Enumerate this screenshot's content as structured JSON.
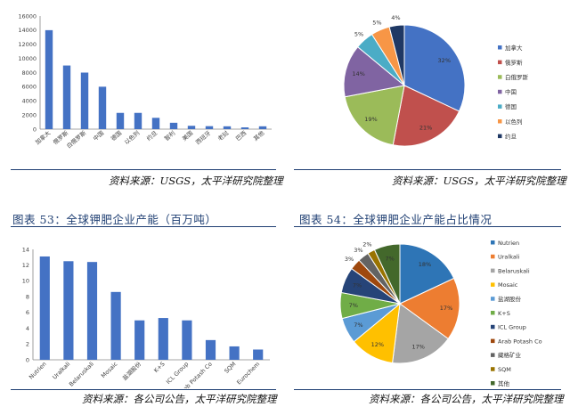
{
  "panels": {
    "top_left": {
      "source": "资料来源：USGS，太平洋研究院整理"
    },
    "top_right": {
      "source": "资料来源：USGS，太平洋研究院整理"
    },
    "bottom_left": {
      "figure_title": "图表 53：全球钾肥企业产能（百万吨）",
      "source": "资料来源：各公司公告，太平洋研究院整理"
    },
    "bottom_right": {
      "figure_title": "图表 54：全球钾肥企业产能占比情况",
      "source": "资料来源：各公司公告，太平洋研究院整理"
    }
  },
  "colors": {
    "bar": "#4472c4",
    "rule": "#1f3f73",
    "pie_top": [
      "#4472c4",
      "#c0504d",
      "#9bbb59",
      "#8064a2",
      "#4bacc6",
      "#f79646",
      "#1f3864"
    ],
    "pie_bottom": [
      "#2e75b6",
      "#ed7d31",
      "#a5a5a5",
      "#ffc000",
      "#5b9bd5",
      "#70ad47",
      "#264478",
      "#9e480e",
      "#636363",
      "#997300",
      "#43682b"
    ]
  },
  "chart_data": [
    {
      "type": "bar",
      "categories": [
        "加拿大",
        "俄罗斯",
        "白俄罗斯",
        "中国",
        "德国",
        "以色列",
        "约旦",
        "智利",
        "美国",
        "西班牙",
        "老挝",
        "巴西",
        "其他"
      ],
      "values": [
        14000,
        9000,
        8000,
        6000,
        2300,
        2300,
        1600,
        900,
        470,
        420,
        400,
        250,
        400
      ],
      "ylim": [
        0,
        16000
      ],
      "yticks": [
        0,
        2000,
        4000,
        6000,
        8000,
        10000,
        12000,
        14000,
        16000
      ],
      "grid": false
    },
    {
      "type": "pie",
      "categories": [
        "加拿大",
        "俄罗斯",
        "白俄罗斯",
        "中国",
        "德国",
        "以色列",
        "约旦"
      ],
      "values": [
        32,
        21,
        19,
        14,
        5,
        5,
        4
      ],
      "slice_labels": [
        "32%",
        "21%",
        "19%",
        "14%",
        "5%",
        "5%",
        "4%"
      ],
      "legend": "right"
    },
    {
      "type": "bar",
      "categories": [
        "Nutrien",
        "Uralkali",
        "Belaruskali",
        "Mosaic",
        "盐湖股份",
        "K+S",
        "ICL Group",
        "Arab Potash Co",
        "SQM",
        "Eurochem"
      ],
      "values": [
        13.1,
        12.5,
        12.4,
        8.6,
        5.0,
        5.3,
        5.0,
        2.5,
        1.7,
        1.3
      ],
      "ylim": [
        0,
        14
      ],
      "yticks": [
        0,
        2,
        4,
        6,
        8,
        10,
        12,
        14
      ],
      "grid": false
    },
    {
      "type": "pie",
      "categories": [
        "Nutrien",
        "Uralkali",
        "Belaruskali",
        "Mosaic",
        "盐湖股份",
        "K+S",
        "ICL Group",
        "Arab Potash Co",
        "藏格矿业",
        "SQM",
        "其他"
      ],
      "values": [
        18,
        17,
        17,
        12,
        7,
        7,
        7,
        3,
        3,
        2,
        7
      ],
      "slice_labels": [
        "18%",
        "17%",
        "17%",
        "12%",
        "7%",
        "7%",
        "7%",
        "3%",
        "3%",
        "2%",
        "7%"
      ],
      "legend": "right"
    }
  ]
}
